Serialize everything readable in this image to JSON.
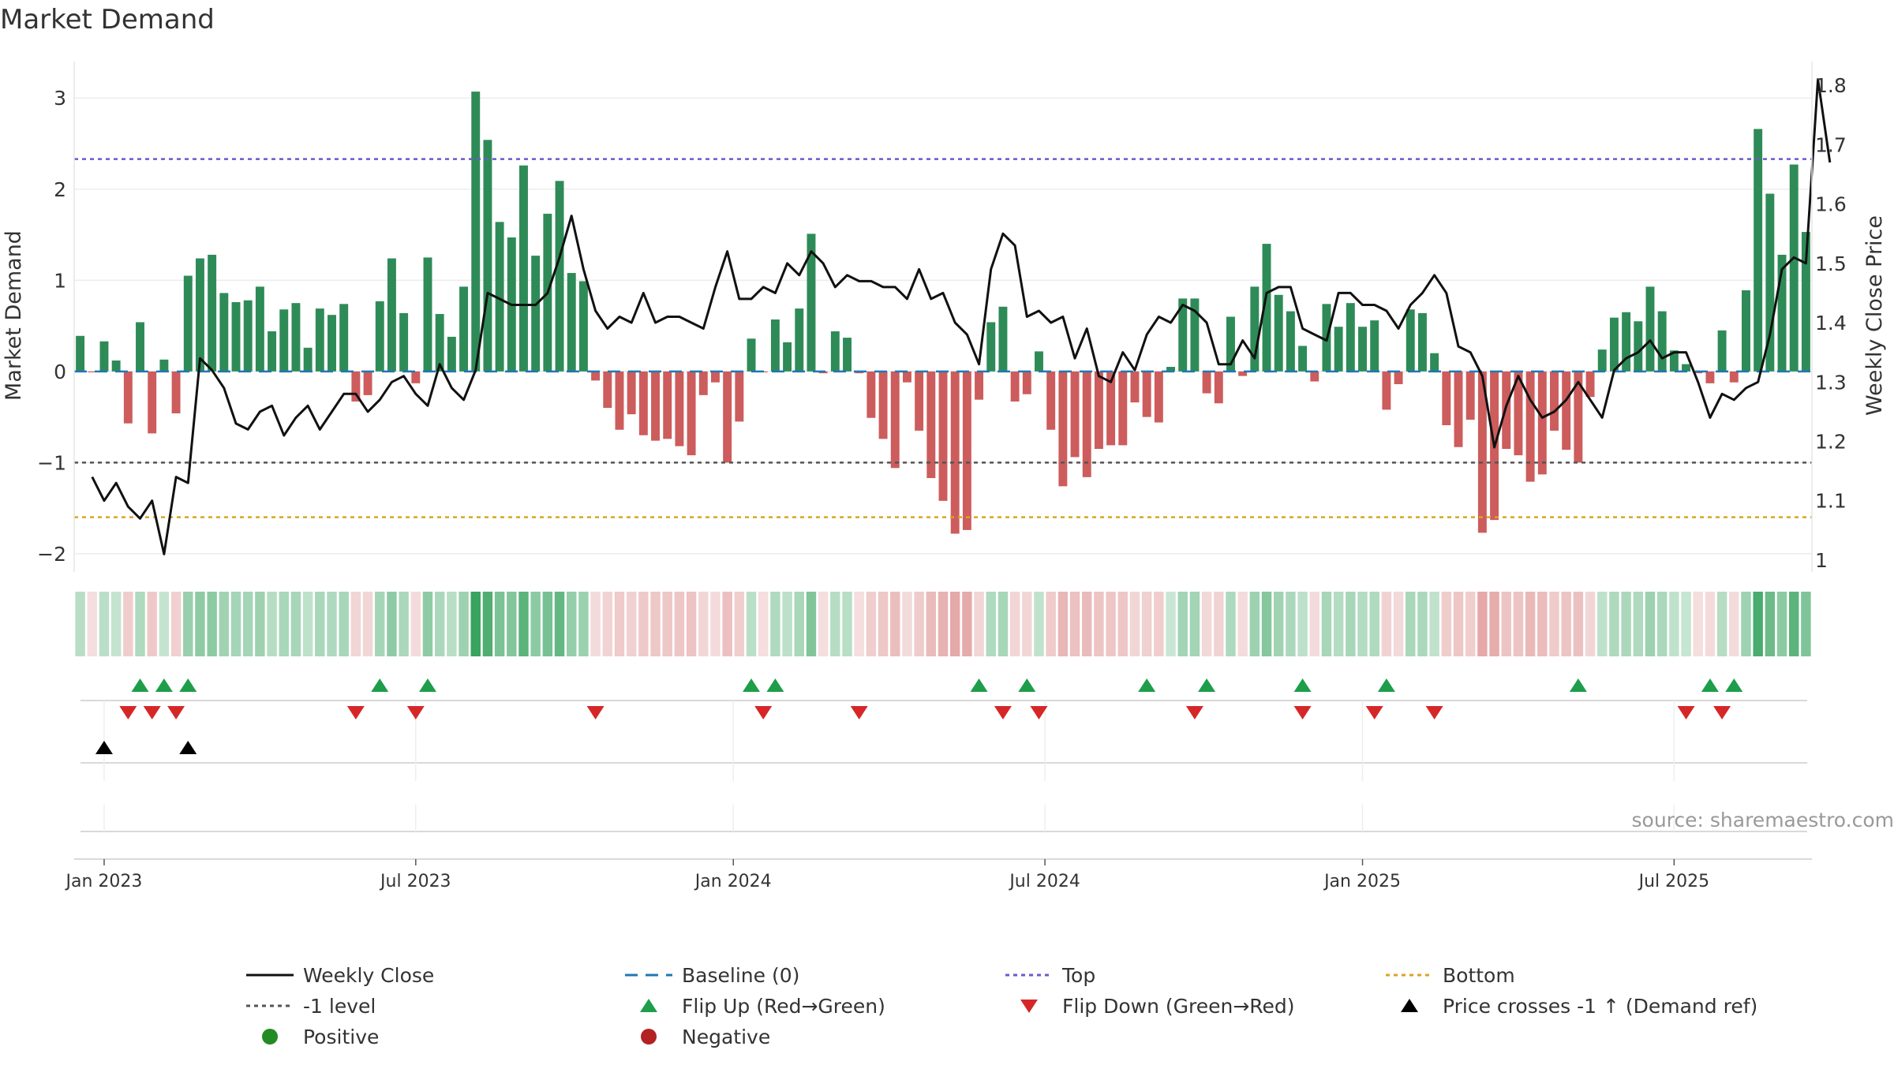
{
  "chart_data": {
    "type": "bar",
    "title": "Market Demand",
    "ylabel": "Market Demand",
    "y2label": "Weekly Close Price",
    "ylim": [
      -2.2,
      3.4
    ],
    "y2lim": [
      0.98,
      1.84
    ],
    "yticks": [
      -2,
      -1,
      0,
      1,
      2,
      3
    ],
    "y2ticks": [
      1.0,
      1.1,
      1.2,
      1.3,
      1.4,
      1.5,
      1.6,
      1.7,
      1.8
    ],
    "y2ticklabels": [
      "1",
      "1.1",
      "1.2",
      "1.3",
      "1.4",
      "1.5",
      "1.6",
      "1.7",
      "1.8"
    ],
    "xticks": [
      {
        "label": "Jan 2023",
        "week": 2
      },
      {
        "label": "Jul 2023",
        "week": 28
      },
      {
        "label": "Jan 2024",
        "week": 54.5
      },
      {
        "label": "Jul 2024",
        "week": 80.5
      },
      {
        "label": "Jan 2025",
        "week": 107
      },
      {
        "label": "Jul 2025",
        "week": 133
      }
    ],
    "reference_lines": {
      "top": 2.33,
      "bottom": -1.6,
      "minus_one": -1.0,
      "baseline": 0.0
    },
    "colors": {
      "positive": "#2e8b57",
      "negative": "#cd5c5c",
      "close": "#111111",
      "top": "#6a5acd",
      "bottom": "#daa520",
      "minus_one": "#555555",
      "baseline": "#1f77b4",
      "flip_up": "#1e9e4a",
      "flip_down": "#d62728",
      "cross": "#000000"
    },
    "demand": [
      0.39,
      -0.01,
      0.33,
      0.12,
      -0.57,
      0.54,
      -0.68,
      0.13,
      -0.46,
      1.05,
      1.24,
      1.28,
      0.86,
      0.76,
      0.78,
      0.93,
      0.44,
      0.68,
      0.75,
      0.26,
      0.69,
      0.62,
      0.74,
      -0.33,
      -0.26,
      0.77,
      1.24,
      0.64,
      -0.13,
      1.25,
      0.63,
      0.38,
      0.93,
      3.07,
      2.54,
      1.64,
      1.47,
      2.26,
      1.27,
      1.73,
      2.09,
      1.08,
      0.99,
      -0.1,
      -0.4,
      -0.64,
      -0.47,
      -0.7,
      -0.76,
      -0.74,
      -0.82,
      -0.92,
      -0.26,
      -0.12,
      -1.0,
      -0.55,
      0.36,
      -0.01,
      0.57,
      0.32,
      0.69,
      1.51,
      -0.02,
      0.44,
      0.37,
      -0.02,
      -0.51,
      -0.74,
      -1.06,
      -0.12,
      -0.65,
      -1.17,
      -1.42,
      -1.78,
      -1.74,
      -0.31,
      0.54,
      0.71,
      -0.33,
      -0.25,
      0.22,
      -0.64,
      -1.26,
      -0.94,
      -1.16,
      -0.85,
      -0.81,
      -0.81,
      -0.34,
      -0.5,
      -0.56,
      0.05,
      0.8,
      0.8,
      -0.24,
      -0.35,
      0.6,
      -0.05,
      0.93,
      1.4,
      0.84,
      0.66,
      0.28,
      -0.11,
      0.74,
      0.49,
      0.75,
      0.49,
      0.56,
      -0.42,
      -0.14,
      0.68,
      0.64,
      0.2,
      -0.59,
      -0.83,
      -0.53,
      -1.77,
      -1.63,
      -0.85,
      -0.92,
      -1.21,
      -1.13,
      -0.65,
      -0.86,
      -1.0,
      -0.28,
      0.24,
      0.59,
      0.65,
      0.55,
      0.93,
      0.66,
      0.23,
      0.08,
      -0.02,
      -0.13,
      0.45,
      -0.12,
      0.89,
      2.66,
      1.95,
      1.28,
      2.27,
      1.53
    ],
    "close_start_week": 1,
    "close": [
      1.14,
      1.1,
      1.13,
      1.09,
      1.07,
      1.1,
      1.01,
      1.14,
      1.13,
      1.34,
      1.32,
      1.29,
      1.23,
      1.22,
      1.25,
      1.26,
      1.21,
      1.24,
      1.26,
      1.22,
      1.25,
      1.28,
      1.28,
      1.25,
      1.27,
      1.3,
      1.31,
      1.28,
      1.26,
      1.33,
      1.29,
      1.27,
      1.32,
      1.45,
      1.44,
      1.43,
      1.43,
      1.43,
      1.45,
      1.51,
      1.58,
      1.49,
      1.42,
      1.39,
      1.41,
      1.4,
      1.45,
      1.4,
      1.41,
      1.41,
      1.4,
      1.39,
      1.46,
      1.52,
      1.44,
      1.44,
      1.46,
      1.45,
      1.5,
      1.48,
      1.52,
      1.5,
      1.46,
      1.48,
      1.47,
      1.47,
      1.46,
      1.46,
      1.44,
      1.49,
      1.44,
      1.45,
      1.4,
      1.38,
      1.33,
      1.49,
      1.55,
      1.53,
      1.41,
      1.42,
      1.4,
      1.41,
      1.34,
      1.39,
      1.31,
      1.3,
      1.35,
      1.32,
      1.38,
      1.41,
      1.4,
      1.43,
      1.42,
      1.4,
      1.33,
      1.33,
      1.37,
      1.34,
      1.45,
      1.46,
      1.46,
      1.39,
      1.38,
      1.37,
      1.45,
      1.45,
      1.43,
      1.43,
      1.42,
      1.39,
      1.43,
      1.45,
      1.48,
      1.45,
      1.36,
      1.35,
      1.31,
      1.19,
      1.26,
      1.31,
      1.27,
      1.24,
      1.25,
      1.27,
      1.3,
      1.27,
      1.24,
      1.32,
      1.34,
      1.35,
      1.37,
      1.34,
      1.35,
      1.35,
      1.3,
      1.24,
      1.28,
      1.27,
      1.29,
      1.3,
      1.38,
      1.49,
      1.51,
      1.5,
      1.81,
      1.67
    ]
  },
  "markers": {
    "flip_up_weeks": [
      5,
      7,
      9,
      25,
      29,
      56,
      58,
      75,
      79,
      89,
      94,
      102,
      109,
      125,
      136,
      138
    ],
    "flip_down_weeks": [
      4,
      6,
      8,
      23,
      28,
      43,
      57,
      65,
      77,
      80,
      93,
      102,
      108,
      113,
      134,
      137
    ],
    "cross_weeks": [
      2,
      9
    ]
  },
  "source_text": "source: sharemaestro.com",
  "legend": [
    {
      "label": "Weekly Close",
      "symbol": "line",
      "color": "#111111"
    },
    {
      "label": "Baseline (0)",
      "symbol": "dash",
      "color": "#1f77b4"
    },
    {
      "label": "Top",
      "symbol": "dot",
      "color": "#6a5acd"
    },
    {
      "label": "Bottom",
      "symbol": "dot",
      "color": "#daa520"
    },
    {
      "label": "-1 level",
      "symbol": "dot",
      "color": "#555555"
    },
    {
      "label": "Flip Up (Red→Green)",
      "symbol": "tri-up",
      "color": "#1e9e4a"
    },
    {
      "label": "Flip Down (Green→Red)",
      "symbol": "tri-down",
      "color": "#d62728"
    },
    {
      "label": "Price crosses -1 ↑ (Demand ref)",
      "symbol": "tri-up",
      "color": "#000000"
    },
    {
      "label": "Positive",
      "symbol": "circle",
      "color": "#228b22"
    },
    {
      "label": "Negative",
      "symbol": "circle",
      "color": "#b22222"
    }
  ]
}
